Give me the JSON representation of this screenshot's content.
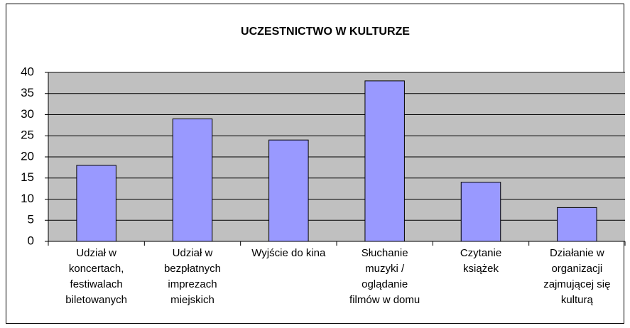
{
  "chart_data": {
    "type": "bar",
    "title": "UCZESTNICTWO W KULTURZE",
    "categories": [
      "Udział w\nkoncertach,\nfestiwalach\nbiletowanych",
      "Udział w\nbezpłatnych\nimprezach\nmiejskich",
      "Wyjście do kina",
      "Słuchanie\nmuzyki /\noglądanie\nfilmów w domu",
      "Czytanie\nksiążek",
      "Działanie w\norganizacji\nzajmującej się\nkulturą"
    ],
    "values": [
      18,
      29,
      24,
      38,
      14,
      8
    ],
    "color": "#9999ff",
    "ylim": [
      0,
      40
    ],
    "yticks": [
      0,
      5,
      10,
      15,
      20,
      25,
      30,
      35,
      40
    ],
    "grid": true
  }
}
